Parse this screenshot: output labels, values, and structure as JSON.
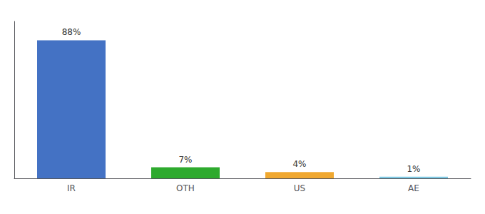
{
  "chart_data": {
    "type": "bar",
    "categories": [
      "IR",
      "OTH",
      "US",
      "AE"
    ],
    "values": [
      88,
      7,
      4,
      1
    ],
    "value_labels": [
      "88%",
      "7%",
      "4%",
      "1%"
    ],
    "colors": [
      "#4472c4",
      "#2eaa2e",
      "#f0a830",
      "#7ec8e3"
    ],
    "ylim": [
      0,
      100
    ],
    "grid": false,
    "data_labels": true,
    "tick_labels": "x"
  }
}
